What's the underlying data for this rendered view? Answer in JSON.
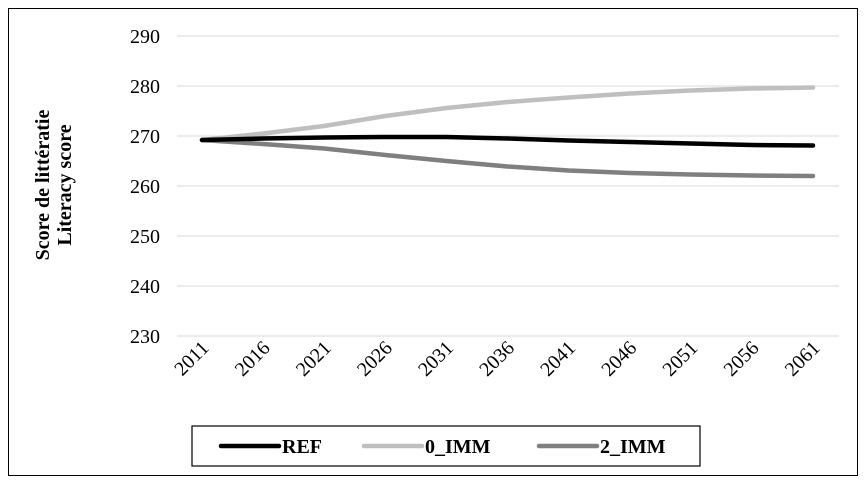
{
  "chart_data": {
    "type": "line",
    "ylabel_lines": [
      "Score de littératie",
      "Literacy score"
    ],
    "xlabel": "",
    "x": [
      "2011",
      "2016",
      "2021",
      "2026",
      "2031",
      "2036",
      "2041",
      "2046",
      "2051",
      "2056",
      "2061"
    ],
    "ylim": [
      230,
      290
    ],
    "yticks": [
      230,
      240,
      250,
      260,
      270,
      280,
      290
    ],
    "grid": true,
    "legend_position": "bottom",
    "series": [
      {
        "name": "REF",
        "color": "#000000",
        "values": [
          269.2,
          269.5,
          269.7,
          269.8,
          269.8,
          269.5,
          269.1,
          268.8,
          268.5,
          268.2,
          268.1
        ]
      },
      {
        "name": "0_IMM",
        "color": "#bfbfbf",
        "values": [
          269.2,
          270.5,
          272.0,
          274.0,
          275.6,
          276.8,
          277.7,
          278.5,
          279.1,
          279.5,
          279.7
        ]
      },
      {
        "name": "2_IMM",
        "color": "#7f7f7f",
        "values": [
          269.2,
          268.4,
          267.5,
          266.2,
          265.0,
          263.9,
          263.1,
          262.6,
          262.3,
          262.1,
          262.0
        ]
      }
    ]
  }
}
